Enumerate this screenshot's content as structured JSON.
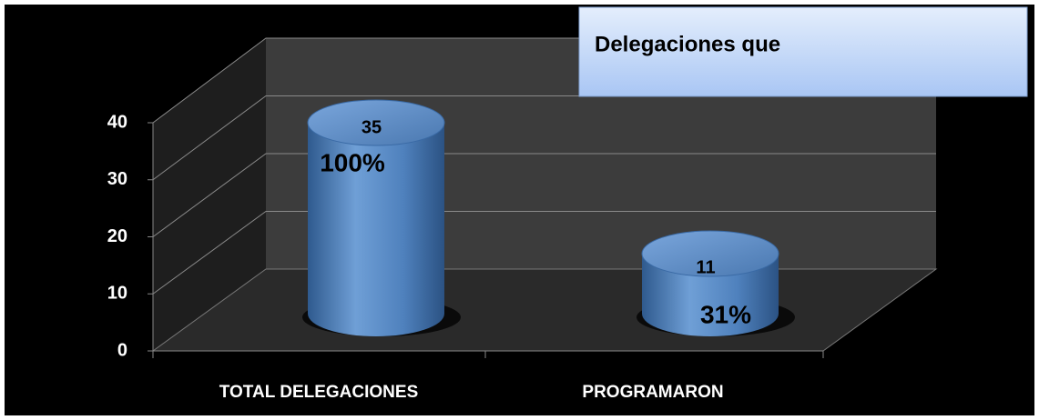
{
  "chart_data": {
    "type": "cylinder",
    "title": "Delegaciones que",
    "categories": [
      "TOTAL DELEGACIONES",
      "PROGRAMARON"
    ],
    "values": [
      35,
      11
    ],
    "percent_labels": [
      "100%",
      "31%"
    ],
    "color": "#4f81bd",
    "ylim": [
      0,
      40
    ],
    "yticks": [
      0,
      10,
      20,
      30,
      40
    ],
    "grid": true
  }
}
